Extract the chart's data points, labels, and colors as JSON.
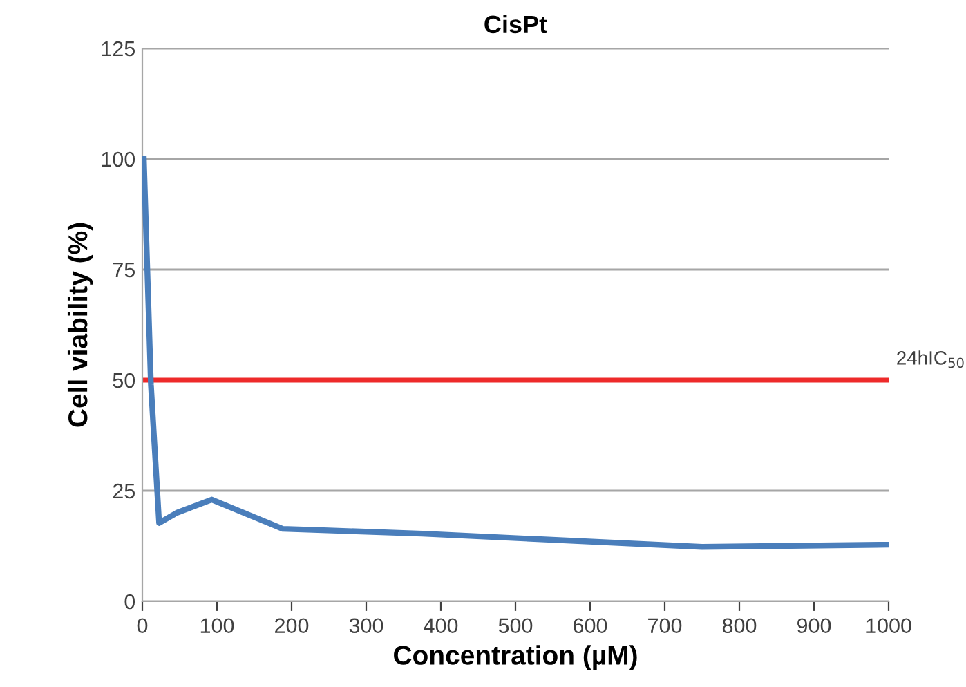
{
  "chart_data": {
    "type": "line",
    "title": "CisPt",
    "xlabel": "Concentration (µM)",
    "ylabel": "Cell viability (%)",
    "series": [
      {
        "color": "#4a7ebb",
        "x": [
          2,
          11.5,
          22.5,
          46,
          93,
          188,
          375,
          750,
          1000
        ],
        "values": [
          100,
          49,
          17.7,
          20,
          23,
          16.4,
          15.3,
          12.3,
          12.8
        ]
      }
    ],
    "xlim": [
      0,
      1000
    ],
    "xticks": [
      0,
      100,
      200,
      300,
      400,
      500,
      600,
      700,
      800,
      900,
      1000
    ],
    "ylim": [
      0,
      125
    ],
    "yticks": [
      0,
      25,
      50,
      75,
      100,
      125
    ],
    "grid": "y",
    "legend": false,
    "marker": "none",
    "line_style": "solid",
    "ref_lines": [
      {
        "axis": "y",
        "value": 50,
        "label": "24hIC$_{50}$",
        "color": "#ee2a2a",
        "line_style": "solid"
      }
    ]
  }
}
